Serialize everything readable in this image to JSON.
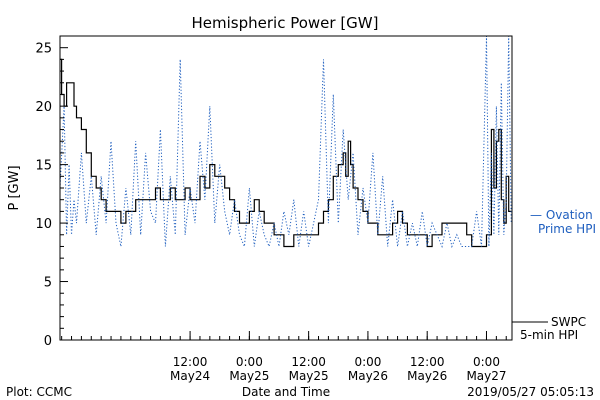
{
  "footer": {
    "left": "Plot: CCMC",
    "center": "Date and Time",
    "right": "2019/05/27 05:05:13"
  },
  "chart_data": {
    "type": "line",
    "title": "Hemispheric Power [GW]",
    "ylabel": "P [GW]",
    "xlabel": "Date and Time",
    "ylim": [
      0,
      26
    ],
    "xlim": [
      "2019-05-23 09:40",
      "2019-05-27 05:10"
    ],
    "yticks": [
      0,
      5,
      10,
      15,
      20,
      25
    ],
    "xticks": [
      {
        "t": "2019-05-24 12:00",
        "line1": "12:00",
        "line2": "May24"
      },
      {
        "t": "2019-05-25 00:00",
        "line1": "0:00",
        "line2": "May25"
      },
      {
        "t": "2019-05-25 12:00",
        "line1": "12:00",
        "line2": "May25"
      },
      {
        "t": "2019-05-26 00:00",
        "line1": "0:00",
        "line2": "May26"
      },
      {
        "t": "2019-05-26 12:00",
        "line1": "12:00",
        "line2": "May26"
      },
      {
        "t": "2019-05-27 00:00",
        "line1": "0:00",
        "line2": "May27"
      }
    ],
    "legend": [
      {
        "line1": "— Ovation",
        "line2": "Prime HPI",
        "color": "#1f5fbf",
        "style": "dotted"
      },
      {
        "line1": "SWPC",
        "line2": "5-min HPI",
        "color": "#000000",
        "style": "solid"
      }
    ],
    "series": [
      {
        "name": "SWPC 5-min HPI",
        "color": "#000000",
        "style": "step",
        "points": [
          [
            "2019-05-23 09:40",
            24
          ],
          [
            "2019-05-23 10:00",
            21
          ],
          [
            "2019-05-23 10:30",
            20
          ],
          [
            "2019-05-23 11:00",
            22
          ],
          [
            "2019-05-23 12:00",
            22
          ],
          [
            "2019-05-23 12:30",
            20
          ],
          [
            "2019-05-23 13:00",
            19
          ],
          [
            "2019-05-23 14:00",
            18
          ],
          [
            "2019-05-23 15:00",
            16
          ],
          [
            "2019-05-23 16:00",
            14
          ],
          [
            "2019-05-23 17:00",
            13
          ],
          [
            "2019-05-23 18:00",
            12
          ],
          [
            "2019-05-23 19:00",
            11
          ],
          [
            "2019-05-23 21:00",
            11
          ],
          [
            "2019-05-23 22:00",
            10
          ],
          [
            "2019-05-23 23:00",
            11
          ],
          [
            "2019-05-24 00:00",
            11
          ],
          [
            "2019-05-24 01:00",
            12
          ],
          [
            "2019-05-24 03:00",
            12
          ],
          [
            "2019-05-24 04:00",
            12
          ],
          [
            "2019-05-24 05:00",
            13
          ],
          [
            "2019-05-24 06:00",
            12
          ],
          [
            "2019-05-24 07:00",
            12
          ],
          [
            "2019-05-24 08:00",
            13
          ],
          [
            "2019-05-24 09:00",
            12
          ],
          [
            "2019-05-24 10:00",
            12
          ],
          [
            "2019-05-24 11:00",
            13
          ],
          [
            "2019-05-24 12:00",
            12
          ],
          [
            "2019-05-24 13:00",
            12
          ],
          [
            "2019-05-24 14:00",
            14
          ],
          [
            "2019-05-24 15:00",
            13
          ],
          [
            "2019-05-24 16:00",
            15
          ],
          [
            "2019-05-24 17:00",
            14
          ],
          [
            "2019-05-24 18:00",
            14
          ],
          [
            "2019-05-24 19:00",
            13
          ],
          [
            "2019-05-24 20:00",
            12
          ],
          [
            "2019-05-24 21:00",
            11
          ],
          [
            "2019-05-24 22:00",
            10
          ],
          [
            "2019-05-24 23:00",
            10
          ],
          [
            "2019-05-25 00:00",
            11
          ],
          [
            "2019-05-25 01:00",
            12
          ],
          [
            "2019-05-25 02:00",
            11
          ],
          [
            "2019-05-25 03:00",
            10
          ],
          [
            "2019-05-25 04:00",
            10
          ],
          [
            "2019-05-25 05:00",
            9
          ],
          [
            "2019-05-25 06:00",
            9
          ],
          [
            "2019-05-25 07:00",
            8
          ],
          [
            "2019-05-25 08:00",
            8
          ],
          [
            "2019-05-25 09:00",
            9
          ],
          [
            "2019-05-25 10:00",
            9
          ],
          [
            "2019-05-25 11:00",
            9
          ],
          [
            "2019-05-25 12:00",
            9
          ],
          [
            "2019-05-25 13:00",
            9
          ],
          [
            "2019-05-25 14:00",
            10
          ],
          [
            "2019-05-25 15:00",
            11
          ],
          [
            "2019-05-25 16:00",
            12
          ],
          [
            "2019-05-25 17:00",
            14
          ],
          [
            "2019-05-25 18:00",
            15
          ],
          [
            "2019-05-25 19:00",
            16
          ],
          [
            "2019-05-25 19:30",
            14
          ],
          [
            "2019-05-25 20:00",
            17
          ],
          [
            "2019-05-25 20:30",
            15
          ],
          [
            "2019-05-25 21:00",
            13
          ],
          [
            "2019-05-25 22:00",
            12
          ],
          [
            "2019-05-25 23:00",
            11
          ],
          [
            "2019-05-26 00:00",
            10
          ],
          [
            "2019-05-26 01:00",
            10
          ],
          [
            "2019-05-26 02:00",
            9
          ],
          [
            "2019-05-26 03:00",
            9
          ],
          [
            "2019-05-26 04:00",
            9
          ],
          [
            "2019-05-26 05:00",
            10
          ],
          [
            "2019-05-26 06:00",
            11
          ],
          [
            "2019-05-26 07:00",
            10
          ],
          [
            "2019-05-26 08:00",
            9
          ],
          [
            "2019-05-26 09:00",
            9
          ],
          [
            "2019-05-26 10:00",
            9
          ],
          [
            "2019-05-26 11:00",
            9
          ],
          [
            "2019-05-26 12:00",
            8
          ],
          [
            "2019-05-26 13:00",
            9
          ],
          [
            "2019-05-26 14:00",
            9
          ],
          [
            "2019-05-26 15:00",
            10
          ],
          [
            "2019-05-26 16:00",
            10
          ],
          [
            "2019-05-26 17:00",
            10
          ],
          [
            "2019-05-26 18:00",
            10
          ],
          [
            "2019-05-26 19:00",
            10
          ],
          [
            "2019-05-26 20:00",
            9
          ],
          [
            "2019-05-26 21:00",
            8
          ],
          [
            "2019-05-26 22:00",
            8
          ],
          [
            "2019-05-26 23:00",
            8
          ],
          [
            "2019-05-27 00:00",
            9
          ],
          [
            "2019-05-27 01:00",
            18
          ],
          [
            "2019-05-27 01:30",
            13
          ],
          [
            "2019-05-27 02:00",
            17
          ],
          [
            "2019-05-27 02:30",
            18
          ],
          [
            "2019-05-27 03:00",
            12
          ],
          [
            "2019-05-27 03:30",
            10
          ],
          [
            "2019-05-27 04:00",
            14
          ],
          [
            "2019-05-27 04:30",
            11
          ],
          [
            "2019-05-27 05:00",
            11
          ]
        ]
      },
      {
        "name": "Ovation Prime HPI",
        "color": "#1f5fbf",
        "style": "dotted",
        "points": [
          [
            "2019-05-23 09:40",
            13
          ],
          [
            "2019-05-23 10:30",
            20
          ],
          [
            "2019-05-23 11:00",
            9
          ],
          [
            "2019-05-23 11:30",
            15
          ],
          [
            "2019-05-23 12:00",
            9
          ],
          [
            "2019-05-23 12:30",
            12
          ],
          [
            "2019-05-23 13:00",
            10
          ],
          [
            "2019-05-23 14:00",
            16
          ],
          [
            "2019-05-23 15:00",
            10
          ],
          [
            "2019-05-23 16:00",
            14
          ],
          [
            "2019-05-23 17:00",
            9
          ],
          [
            "2019-05-23 18:00",
            14
          ],
          [
            "2019-05-23 19:00",
            10
          ],
          [
            "2019-05-23 20:00",
            17
          ],
          [
            "2019-05-23 21:00",
            10
          ],
          [
            "2019-05-23 22:00",
            8
          ],
          [
            "2019-05-23 23:00",
            13
          ],
          [
            "2019-05-24 00:00",
            9
          ],
          [
            "2019-05-24 01:00",
            17
          ],
          [
            "2019-05-24 02:00",
            9
          ],
          [
            "2019-05-24 03:00",
            16
          ],
          [
            "2019-05-24 04:00",
            11
          ],
          [
            "2019-05-24 05:00",
            10
          ],
          [
            "2019-05-24 06:00",
            18
          ],
          [
            "2019-05-24 07:00",
            8
          ],
          [
            "2019-05-24 08:00",
            14
          ],
          [
            "2019-05-24 09:00",
            9
          ],
          [
            "2019-05-24 10:00",
            24
          ],
          [
            "2019-05-24 11:00",
            9
          ],
          [
            "2019-05-24 12:00",
            13
          ],
          [
            "2019-05-24 13:00",
            10
          ],
          [
            "2019-05-24 14:00",
            17
          ],
          [
            "2019-05-24 15:00",
            12
          ],
          [
            "2019-05-24 16:00",
            20
          ],
          [
            "2019-05-24 17:00",
            10
          ],
          [
            "2019-05-24 18:00",
            15
          ],
          [
            "2019-05-24 19:00",
            11
          ],
          [
            "2019-05-24 20:00",
            9
          ],
          [
            "2019-05-24 21:00",
            12
          ],
          [
            "2019-05-24 22:00",
            9
          ],
          [
            "2019-05-24 23:00",
            8
          ],
          [
            "2019-05-25 00:00",
            13
          ],
          [
            "2019-05-25 01:00",
            8
          ],
          [
            "2019-05-25 02:00",
            11
          ],
          [
            "2019-05-25 03:00",
            9
          ],
          [
            "2019-05-25 04:00",
            8
          ],
          [
            "2019-05-25 05:00",
            10
          ],
          [
            "2019-05-25 06:00",
            8
          ],
          [
            "2019-05-25 07:00",
            11
          ],
          [
            "2019-05-25 08:00",
            9
          ],
          [
            "2019-05-25 09:00",
            12
          ],
          [
            "2019-05-25 10:00",
            8
          ],
          [
            "2019-05-25 11:00",
            11
          ],
          [
            "2019-05-25 12:00",
            8
          ],
          [
            "2019-05-25 13:00",
            10
          ],
          [
            "2019-05-25 14:00",
            12
          ],
          [
            "2019-05-25 15:00",
            24
          ],
          [
            "2019-05-25 16:00",
            10
          ],
          [
            "2019-05-25 17:00",
            21
          ],
          [
            "2019-05-25 18:00",
            10
          ],
          [
            "2019-05-25 19:00",
            18
          ],
          [
            "2019-05-25 20:00",
            12
          ],
          [
            "2019-05-25 21:00",
            16
          ],
          [
            "2019-05-25 22:00",
            9
          ],
          [
            "2019-05-25 23:00",
            13
          ],
          [
            "2019-05-26 00:00",
            10
          ],
          [
            "2019-05-26 01:00",
            16
          ],
          [
            "2019-05-26 02:00",
            9
          ],
          [
            "2019-05-26 03:00",
            14
          ],
          [
            "2019-05-26 04:00",
            8
          ],
          [
            "2019-05-26 05:00",
            12
          ],
          [
            "2019-05-26 06:00",
            8
          ],
          [
            "2019-05-26 07:00",
            11
          ],
          [
            "2019-05-26 08:00",
            8
          ],
          [
            "2019-05-26 09:00",
            10
          ],
          [
            "2019-05-26 10:00",
            8
          ],
          [
            "2019-05-26 11:00",
            11
          ],
          [
            "2019-05-26 12:00",
            8
          ],
          [
            "2019-05-26 13:00",
            10
          ],
          [
            "2019-05-26 14:00",
            9
          ],
          [
            "2019-05-26 15:00",
            8
          ],
          [
            "2019-05-26 16:00",
            10
          ],
          [
            "2019-05-26 17:00",
            8
          ],
          [
            "2019-05-26 18:00",
            9
          ],
          [
            "2019-05-26 19:00",
            8
          ],
          [
            "2019-05-26 20:00",
            8
          ],
          [
            "2019-05-26 21:00",
            8
          ],
          [
            "2019-05-26 22:00",
            11
          ],
          [
            "2019-05-26 23:00",
            8
          ],
          [
            "2019-05-27 00:00",
            26
          ],
          [
            "2019-05-27 00:30",
            8
          ],
          [
            "2019-05-27 01:00",
            16
          ],
          [
            "2019-05-27 01:30",
            9
          ],
          [
            "2019-05-27 02:00",
            20
          ],
          [
            "2019-05-27 02:30",
            9
          ],
          [
            "2019-05-27 03:00",
            22
          ],
          [
            "2019-05-27 03:30",
            9
          ],
          [
            "2019-05-27 04:00",
            12
          ],
          [
            "2019-05-27 04:30",
            26
          ],
          [
            "2019-05-27 05:00",
            10
          ]
        ]
      }
    ]
  }
}
